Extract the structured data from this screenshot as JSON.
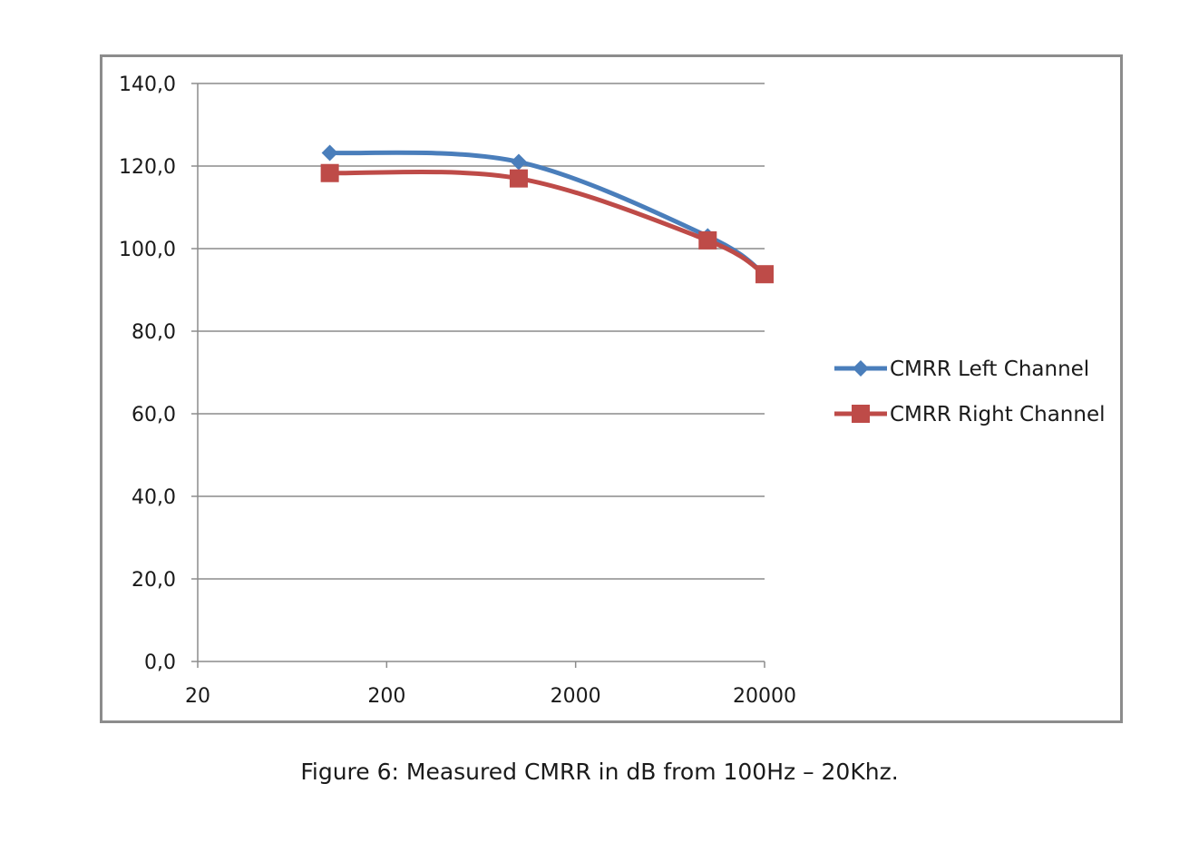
{
  "caption": "Figure 6: Measured CMRR in dB from 100Hz – 20Khz.",
  "chart_data": {
    "type": "line",
    "x_scale": "log",
    "xlim": [
      20,
      20000
    ],
    "ylim": [
      0,
      140
    ],
    "x_ticks": [
      "20",
      "200",
      "2000",
      "20000"
    ],
    "y_ticks": [
      "0,0",
      "20,0",
      "40,0",
      "60,0",
      "80,0",
      "100,0",
      "120,0",
      "140,0"
    ],
    "grid": "horizontal",
    "legend_position": "right",
    "series": [
      {
        "name": "CMRR Left Channel",
        "color": "#4a7ebb",
        "marker": "diamond",
        "x": [
          100,
          1000,
          10000,
          20000
        ],
        "y": [
          123.2,
          121.0,
          103.0,
          93.8
        ]
      },
      {
        "name": "CMRR Right Channel",
        "color": "#be4b48",
        "marker": "square",
        "x": [
          100,
          1000,
          10000,
          20000
        ],
        "y": [
          118.3,
          117.0,
          102.0,
          93.8
        ]
      }
    ]
  }
}
